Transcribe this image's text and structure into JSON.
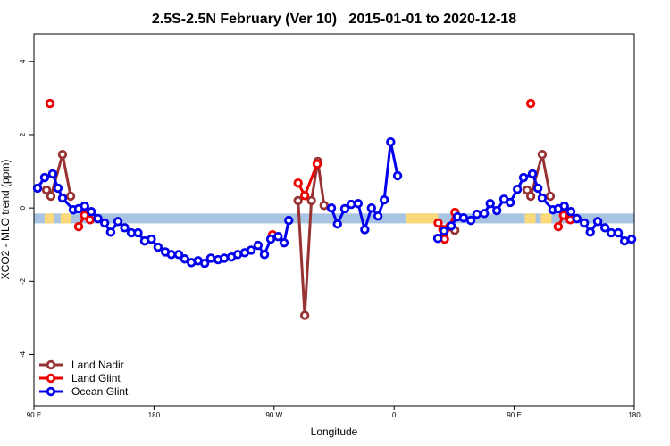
{
  "chart_data": {
    "type": "line",
    "title": "2.5S-2.5N February (Ver 10)   2015-01-01 to 2020-12-18",
    "xlabel": "Longitude",
    "ylabel": "XCO2 - MLO trend (ppm)",
    "xlim": [
      90,
      540
    ],
    "ylim": [
      -5.4,
      4.75
    ],
    "xticks": [
      {
        "value": 90,
        "label": "90 E"
      },
      {
        "value": 180,
        "label": "180"
      },
      {
        "value": 270,
        "label": "90 W"
      },
      {
        "value": 360,
        "label": "0"
      },
      {
        "value": 450,
        "label": "90 E"
      },
      {
        "value": 540,
        "label": "180"
      }
    ],
    "yticks": [
      -4,
      -2,
      0,
      2,
      4
    ],
    "band": {
      "ylim": [
        -0.15,
        -0.42
      ],
      "color": "#a9c4e3",
      "land_color": "#fad97a",
      "land_spans": [
        [
          98,
          104.7
        ],
        [
          110,
          118
        ],
        [
          369,
          393
        ],
        [
          458,
          466
        ],
        [
          470,
          478
        ]
      ]
    },
    "legend": "bottom-left",
    "series": [
      {
        "name": "Land Nadir",
        "color": "#993333",
        "x": [
          99.4,
          102.7,
          111.4,
          117.5,
          null,
          288,
          293,
          298,
          302.8,
          307.5,
          null,
          405.5,
          null,
          459.7,
          462.4,
          471,
          477
        ],
        "values": [
          0.49,
          0.32,
          1.46,
          0.32,
          null,
          0.2,
          -2.93,
          0.2,
          1.27,
          0.07,
          null,
          -0.61,
          null,
          0.49,
          0.32,
          1.46,
          0.32
        ]
      },
      {
        "name": "Land Glint",
        "color": "#ee0000",
        "x": [
          102,
          null,
          123.5,
          128,
          132,
          null,
          268.8,
          null,
          288,
          293,
          302.3,
          null,
          393,
          396.5,
          397.8,
          401.6,
          405.6,
          null,
          462.4,
          null,
          483,
          487,
          492
        ],
        "values": [
          2.85,
          null,
          -0.51,
          -0.2,
          -0.32,
          null,
          -0.73,
          null,
          0.68,
          0.34,
          1.2,
          null,
          -0.41,
          -0.59,
          -0.85,
          -0.51,
          -0.12,
          null,
          2.85,
          null,
          -0.51,
          -0.2,
          -0.32
        ]
      },
      {
        "name": "Ocean Glint",
        "color": "#0000ee",
        "x": [
          92.7,
          98,
          104,
          108,
          111.4,
          119.5,
          123.5,
          128,
          133,
          138,
          143,
          147.5,
          153,
          158,
          163,
          168,
          173,
          178,
          183,
          188.5,
          193,
          198.5,
          203,
          208,
          213,
          218,
          222.6,
          228,
          232.7,
          238,
          242.7,
          248,
          252.8,
          258,
          262.8,
          267.5,
          273,
          277.5,
          281,
          null,
          313,
          317.5,
          323,
          327.8,
          333,
          338,
          343,
          347.9,
          352.6,
          357.4,
          362.6,
          null,
          392.7,
          397.4,
          402.8,
          407.5,
          412,
          417.5,
          422,
          427.6,
          432,
          437,
          442.3,
          447,
          452.4,
          457,
          463.7,
          467.8,
          471,
          479,
          483,
          487.6,
          492.5,
          497,
          502.6,
          507,
          512.6,
          518,
          522.7,
          528,
          532.7,
          538
        ],
        "values": [
          0.54,
          0.83,
          0.93,
          0.54,
          0.27,
          -0.05,
          -0.02,
          0.05,
          -0.1,
          -0.29,
          -0.41,
          -0.66,
          -0.37,
          -0.54,
          -0.68,
          -0.68,
          -0.9,
          -0.85,
          -1.07,
          -1.2,
          -1.27,
          -1.27,
          -1.39,
          -1.49,
          -1.44,
          -1.51,
          -1.37,
          -1.41,
          -1.37,
          -1.34,
          -1.27,
          -1.22,
          -1.15,
          -1.02,
          -1.27,
          -0.85,
          -0.78,
          -0.95,
          -0.34,
          null,
          0,
          -0.44,
          -0.02,
          0.1,
          0.12,
          -0.59,
          0,
          -0.22,
          0.22,
          1.8,
          0.88,
          null,
          -0.83,
          -0.63,
          -0.49,
          -0.24,
          -0.27,
          -0.34,
          -0.17,
          -0.15,
          0.12,
          -0.07,
          0.24,
          0.15,
          0.51,
          0.83,
          0.93,
          0.54,
          0.27,
          -0.05,
          -0.02,
          0.05,
          -0.1,
          -0.29,
          -0.41,
          -0.66,
          -0.37,
          -0.54,
          -0.68,
          -0.68,
          -0.9,
          -0.85
        ]
      }
    ]
  }
}
